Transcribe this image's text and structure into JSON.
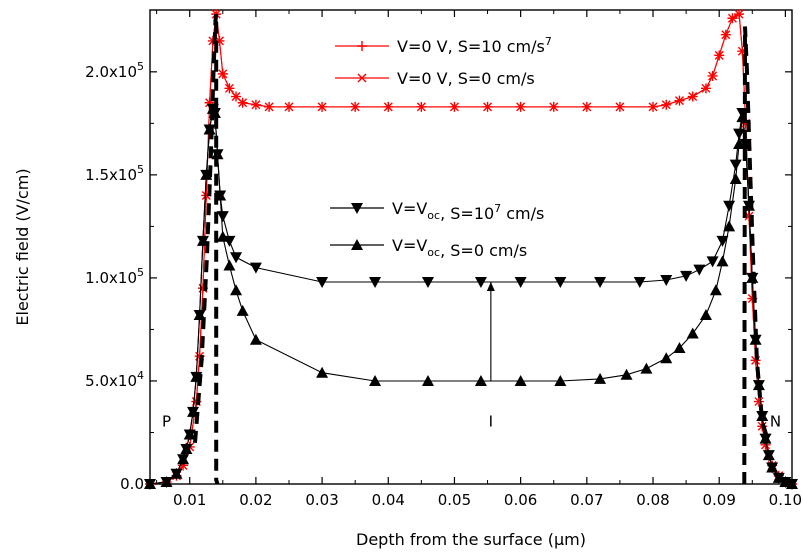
{
  "chart_data": {
    "type": "line",
    "title": "",
    "xlabel": "Depth from the surface (µm)",
    "ylabel": "Electric field (V/cm)",
    "xlim": [
      0.004,
      0.101
    ],
    "ylim": [
      0,
      230000
    ],
    "xticks": [
      {
        "v": 0.01,
        "label": "0.01"
      },
      {
        "v": 0.02,
        "label": "0.02"
      },
      {
        "v": 0.03,
        "label": "0.03"
      },
      {
        "v": 0.04,
        "label": "0.04"
      },
      {
        "v": 0.05,
        "label": "0.05"
      },
      {
        "v": 0.06,
        "label": "0.06"
      },
      {
        "v": 0.07,
        "label": "0.07"
      },
      {
        "v": 0.08,
        "label": "0.08"
      },
      {
        "v": 0.09,
        "label": "0.09"
      },
      {
        "v": 0.1,
        "label": "0.10"
      }
    ],
    "yticks": [
      {
        "v": 0,
        "label": "0.0"
      },
      {
        "v": 50000,
        "mant": "5.0x10",
        "exp": "4"
      },
      {
        "v": 100000,
        "mant": "1.0x10",
        "exp": "5"
      },
      {
        "v": 150000,
        "mant": "1.5x10",
        "exp": "5"
      },
      {
        "v": 200000,
        "mant": "2.0x10",
        "exp": "5"
      }
    ],
    "legend_placement": "top-center",
    "legend": [
      {
        "series": 0,
        "text": "V=0 V, S=10",
        "sup": "7",
        "tail": " cm/s"
      },
      {
        "series": 1,
        "text": "V=0 V, S=0 cm/s"
      },
      {
        "series": 2,
        "text": "V=V",
        "sub": "oc",
        "tail": ", S=10",
        "sup": "7",
        "tail2": " cm/s"
      },
      {
        "series": 3,
        "text": "V=V",
        "sub": "oc",
        "tail": ", S=0 cm/s"
      }
    ],
    "annotations": [
      {
        "text": "P",
        "x": 0.0065,
        "y": 28000
      },
      {
        "text": "I",
        "x": 0.0555,
        "y": 28000
      },
      {
        "text": "N",
        "x": 0.0985,
        "y": 28000
      }
    ],
    "arrow": {
      "x": 0.0555,
      "y_from": 50000,
      "y_to": 98000
    },
    "series": [
      {
        "name": "V=0 V, S=10^7 cm/s",
        "color": "#ff0000",
        "marker": "plus",
        "dashed": false,
        "x": [
          0.004,
          0.0065,
          0.008,
          0.009,
          0.01,
          0.011,
          0.0115,
          0.012,
          0.0125,
          0.013,
          0.0135,
          0.014,
          0.0145,
          0.015,
          0.016,
          0.017,
          0.018,
          0.02,
          0.022,
          0.025,
          0.03,
          0.035,
          0.04,
          0.045,
          0.05,
          0.055,
          0.06,
          0.065,
          0.07,
          0.075,
          0.08,
          0.082,
          0.084,
          0.086,
          0.088,
          0.089,
          0.09,
          0.091,
          0.092,
          0.093,
          0.0935,
          0.094,
          0.0945,
          0.095,
          0.0955,
          0.096,
          0.0965,
          0.097,
          0.098,
          0.099,
          0.1,
          0.101
        ],
        "y": [
          0,
          1000,
          4000,
          9000,
          18000,
          40000,
          62000,
          95000,
          140000,
          185000,
          215000,
          228000,
          215000,
          199000,
          192000,
          188000,
          185000,
          184000,
          183000,
          183000,
          183000,
          183000,
          183000,
          183000,
          183000,
          183000,
          183000,
          183000,
          183000,
          183000,
          183000,
          184000,
          186000,
          188000,
          192000,
          198000,
          208000,
          218000,
          226000,
          228000,
          210000,
          175000,
          130000,
          90000,
          60000,
          40000,
          28000,
          19000,
          9000,
          4000,
          1000,
          0
        ]
      },
      {
        "name": "V=0 V, S=0 cm/s",
        "color": "#ff0000",
        "marker": "x",
        "dashed": false,
        "x": [
          0.004,
          0.0065,
          0.008,
          0.009,
          0.01,
          0.011,
          0.0115,
          0.012,
          0.0125,
          0.013,
          0.0135,
          0.014,
          0.0145,
          0.015,
          0.016,
          0.017,
          0.018,
          0.02,
          0.022,
          0.025,
          0.03,
          0.035,
          0.04,
          0.045,
          0.05,
          0.055,
          0.06,
          0.065,
          0.07,
          0.075,
          0.08,
          0.082,
          0.084,
          0.086,
          0.088,
          0.089,
          0.09,
          0.091,
          0.092,
          0.093,
          0.0935,
          0.094,
          0.0945,
          0.095,
          0.0955,
          0.096,
          0.0965,
          0.097,
          0.098,
          0.099,
          0.1,
          0.101
        ],
        "y": [
          0,
          1000,
          4000,
          9000,
          18000,
          40000,
          62000,
          95000,
          140000,
          185000,
          215000,
          228000,
          215000,
          199000,
          192000,
          188000,
          185000,
          184000,
          183000,
          183000,
          183000,
          183000,
          183000,
          183000,
          183000,
          183000,
          183000,
          183000,
          183000,
          183000,
          183000,
          184000,
          186000,
          188000,
          192000,
          198000,
          208000,
          218000,
          226000,
          228000,
          210000,
          175000,
          130000,
          90000,
          60000,
          40000,
          28000,
          19000,
          9000,
          4000,
          1000,
          0
        ]
      },
      {
        "name": "V=Voc, S=10^7 cm/s",
        "color": "#000000",
        "marker": "tri-down",
        "dashed": false,
        "x": [
          0.004,
          0.0065,
          0.008,
          0.009,
          0.0095,
          0.01,
          0.0105,
          0.011,
          0.0115,
          0.012,
          0.0125,
          0.013,
          0.0135,
          0.0138,
          0.0142,
          0.0146,
          0.015,
          0.016,
          0.017,
          0.02,
          0.03,
          0.038,
          0.046,
          0.054,
          0.06,
          0.066,
          0.072,
          0.078,
          0.082,
          0.085,
          0.087,
          0.089,
          0.0905,
          0.0915,
          0.0925,
          0.093,
          0.0935,
          0.094,
          0.0945,
          0.095,
          0.0955,
          0.096,
          0.0965,
          0.097,
          0.0975,
          0.098,
          0.099,
          0.1,
          0.101
        ],
        "y": [
          0,
          1000,
          5000,
          12000,
          17000,
          24000,
          35000,
          52000,
          82000,
          118000,
          150000,
          172000,
          182000,
          180000,
          160000,
          140000,
          130000,
          118000,
          110000,
          105000,
          98000,
          98000,
          98000,
          98000,
          98000,
          98000,
          98000,
          98000,
          99000,
          101000,
          104000,
          108000,
          118000,
          135000,
          155000,
          170000,
          180000,
          165000,
          135000,
          100000,
          70000,
          48000,
          33000,
          22000,
          14000,
          8000,
          3000,
          1000,
          0
        ]
      },
      {
        "name": "V=Voc, S=0 cm/s",
        "color": "#000000",
        "marker": "tri-up",
        "dashed": false,
        "x": [
          0.004,
          0.0065,
          0.008,
          0.009,
          0.0095,
          0.01,
          0.0105,
          0.011,
          0.0115,
          0.012,
          0.0125,
          0.013,
          0.0135,
          0.0138,
          0.0142,
          0.0146,
          0.015,
          0.016,
          0.017,
          0.018,
          0.02,
          0.03,
          0.038,
          0.046,
          0.054,
          0.06,
          0.066,
          0.072,
          0.076,
          0.079,
          0.082,
          0.084,
          0.086,
          0.088,
          0.0895,
          0.0905,
          0.0915,
          0.0925,
          0.093,
          0.0935,
          0.094,
          0.0945,
          0.095,
          0.0955,
          0.096,
          0.0965,
          0.097,
          0.0975,
          0.098,
          0.099,
          0.1,
          0.101
        ],
        "y": [
          0,
          1000,
          5000,
          12000,
          17000,
          24000,
          35000,
          52000,
          82000,
          118000,
          150000,
          172000,
          182000,
          180000,
          160000,
          140000,
          120000,
          106000,
          94000,
          84000,
          70000,
          54000,
          50000,
          50000,
          50000,
          50000,
          50000,
          51000,
          53000,
          56000,
          61000,
          66000,
          73000,
          82000,
          94000,
          108000,
          125000,
          148000,
          165000,
          178000,
          165000,
          135000,
          100000,
          70000,
          48000,
          33000,
          22000,
          14000,
          8000,
          3000,
          1000,
          0
        ]
      },
      {
        "name": "dashed-left-junction",
        "color": "#000000",
        "marker": "none",
        "dashed": true,
        "x": [
          0.0108,
          0.0118,
          0.0126,
          0.0132,
          0.0136,
          0.0139,
          0.014,
          0.014,
          0.0142
        ],
        "y": [
          20000,
          60000,
          110000,
          160000,
          200000,
          225000,
          228000,
          2000,
          0
        ]
      },
      {
        "name": "dashed-right-junction",
        "color": "#000000",
        "marker": "none",
        "dashed": true,
        "x": [
          0.0938,
          0.0938,
          0.0939,
          0.0942,
          0.0946,
          0.0951,
          0.0957,
          0.0965,
          0.0975
        ],
        "y": [
          0,
          2000,
          222000,
          200000,
          160000,
          110000,
          60000,
          30000,
          20000
        ]
      }
    ]
  }
}
